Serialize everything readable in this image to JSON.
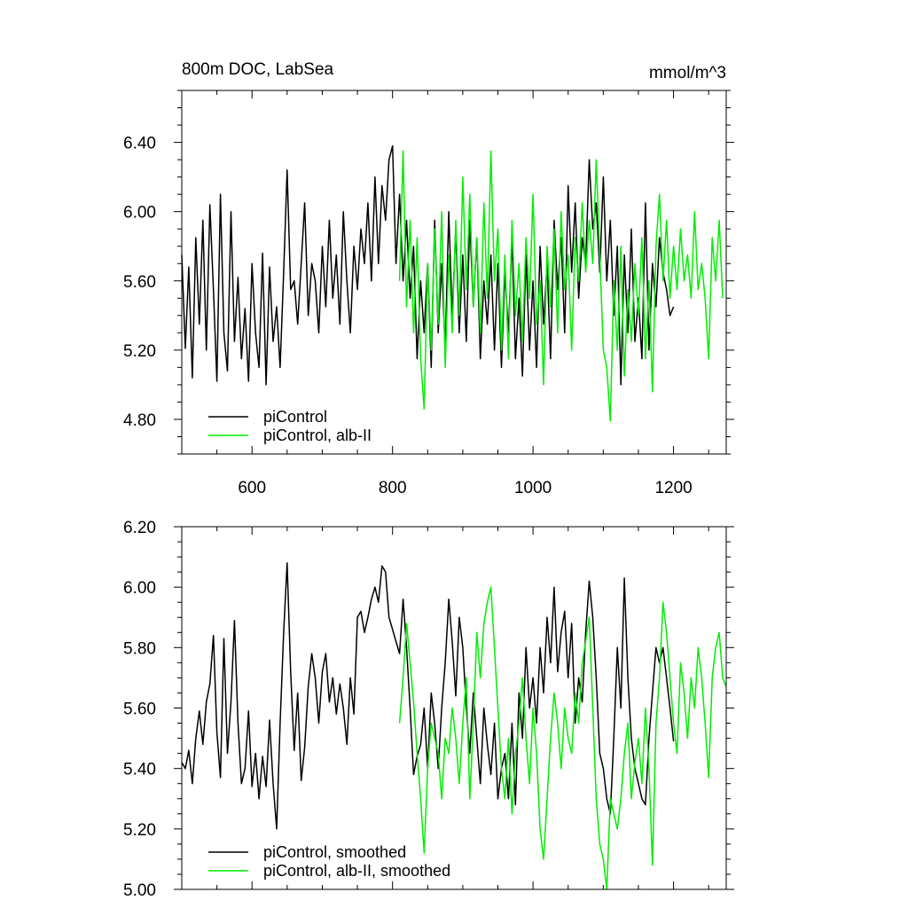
{
  "colors": {
    "black": "#000000",
    "green": "#00ee00",
    "background": "#ffffff"
  },
  "chart_data": [
    {
      "type": "line",
      "title": "800m DOC, LabSea",
      "units": "mmol/m^3",
      "xlabel": "",
      "ylabel": "",
      "xlim": [
        500,
        1275
      ],
      "ylim": [
        4.6,
        6.7
      ],
      "xticks": [
        600,
        800,
        1000,
        1200
      ],
      "xtick_labels": [
        "600",
        "800",
        "1000",
        "1200"
      ],
      "yticks": [
        4.8,
        5.2,
        5.6,
        6.0,
        6.4
      ],
      "ytick_labels": [
        "4.80",
        "5.20",
        "5.60",
        "6.00",
        "6.40"
      ],
      "grid": false,
      "legend_position": "bottom-left",
      "series": [
        {
          "name": "piControl",
          "color": "#000000",
          "x": [
            500,
            505,
            510,
            515,
            520,
            525,
            530,
            535,
            540,
            545,
            550,
            555,
            560,
            565,
            570,
            575,
            580,
            585,
            590,
            595,
            600,
            605,
            610,
            615,
            620,
            625,
            630,
            635,
            640,
            645,
            650,
            655,
            660,
            665,
            670,
            675,
            680,
            685,
            690,
            695,
            700,
            705,
            710,
            715,
            720,
            725,
            730,
            735,
            740,
            745,
            750,
            755,
            760,
            765,
            770,
            775,
            780,
            785,
            790,
            795,
            800,
            805,
            810,
            815,
            820,
            825,
            830,
            835,
            840,
            845,
            850,
            855,
            860,
            865,
            870,
            875,
            880,
            885,
            890,
            895,
            900,
            905,
            910,
            915,
            920,
            925,
            930,
            935,
            940,
            945,
            950,
            955,
            960,
            965,
            970,
            975,
            980,
            985,
            990,
            995,
            1000,
            1005,
            1010,
            1015,
            1020,
            1025,
            1030,
            1035,
            1040,
            1045,
            1050,
            1055,
            1060,
            1065,
            1070,
            1075,
            1080,
            1085,
            1090,
            1095,
            1100,
            1105,
            1110,
            1115,
            1120,
            1125,
            1130,
            1135,
            1140,
            1145,
            1150,
            1155,
            1160,
            1165,
            1170,
            1175,
            1180,
            1185,
            1190,
            1195,
            1200
          ],
          "values": [
            5.75,
            5.21,
            5.68,
            5.04,
            5.85,
            5.35,
            5.95,
            5.2,
            6.04,
            5.55,
            5.02,
            6.1,
            5.3,
            5.08,
            6.0,
            5.25,
            5.62,
            5.15,
            5.44,
            5.02,
            5.7,
            5.3,
            5.1,
            5.76,
            5.0,
            5.68,
            5.25,
            5.45,
            5.1,
            5.65,
            6.24,
            5.55,
            5.6,
            5.35,
            5.7,
            6.05,
            5.4,
            5.7,
            5.6,
            5.3,
            5.8,
            5.45,
            5.95,
            5.5,
            5.75,
            5.35,
            6.0,
            5.6,
            5.3,
            5.8,
            5.55,
            5.9,
            5.7,
            6.05,
            5.6,
            6.2,
            5.7,
            6.15,
            5.95,
            6.3,
            6.38,
            5.7,
            6.1,
            5.6,
            5.95,
            5.5,
            5.8,
            5.15,
            5.6,
            5.3,
            5.7,
            5.1,
            5.95,
            5.3,
            5.7,
            5.2,
            6.0,
            5.4,
            5.9,
            5.3,
            5.75,
            5.25,
            5.95,
            5.45,
            5.85,
            5.15,
            5.6,
            5.35,
            5.75,
            5.2,
            5.7,
            5.1,
            5.65,
            5.3,
            5.85,
            5.15,
            5.5,
            5.05,
            5.75,
            5.2,
            5.6,
            5.1,
            5.8,
            5.35,
            5.7,
            5.15,
            5.95,
            5.55,
            5.85,
            5.3,
            6.15,
            5.65,
            6.05,
            5.5,
            5.85,
            5.7,
            6.3,
            5.9,
            6.05,
            5.65,
            6.2,
            5.6,
            5.95,
            5.4,
            5.8,
            5.0,
            5.75,
            5.3,
            5.9,
            5.25,
            5.5,
            5.15,
            6.05,
            5.2,
            5.7,
            5.45,
            5.85,
            5.65,
            5.55,
            5.4,
            5.45
          ]
        },
        {
          "name": "piControl, alb-II",
          "color": "#00ee00",
          "x": [
            810,
            815,
            820,
            825,
            830,
            835,
            840,
            845,
            850,
            855,
            860,
            865,
            870,
            875,
            880,
            885,
            890,
            895,
            900,
            905,
            910,
            915,
            920,
            925,
            930,
            935,
            940,
            945,
            950,
            955,
            960,
            965,
            970,
            975,
            980,
            985,
            990,
            995,
            1000,
            1005,
            1010,
            1015,
            1020,
            1025,
            1030,
            1035,
            1040,
            1045,
            1050,
            1055,
            1060,
            1065,
            1070,
            1075,
            1080,
            1085,
            1090,
            1095,
            1100,
            1105,
            1110,
            1115,
            1120,
            1125,
            1130,
            1135,
            1140,
            1145,
            1150,
            1155,
            1160,
            1165,
            1170,
            1175,
            1180,
            1185,
            1190,
            1195,
            1200,
            1205,
            1210,
            1215,
            1220,
            1225,
            1230,
            1235,
            1240,
            1245,
            1250,
            1255,
            1260,
            1265,
            1270
          ],
          "values": [
            5.6,
            6.35,
            5.45,
            5.95,
            5.3,
            5.85,
            5.15,
            4.86,
            5.7,
            5.2,
            5.9,
            5.35,
            6.0,
            5.1,
            5.75,
            5.3,
            5.95,
            5.4,
            6.2,
            5.55,
            6.1,
            5.45,
            5.85,
            5.3,
            6.05,
            5.5,
            6.35,
            5.6,
            5.9,
            5.2,
            5.75,
            5.15,
            5.95,
            5.4,
            5.7,
            5.25,
            5.85,
            5.5,
            6.1,
            5.35,
            5.6,
            5.0,
            5.8,
            5.45,
            5.9,
            5.3,
            6.0,
            5.55,
            5.75,
            5.2,
            5.85,
            5.6,
            6.05,
            5.65,
            5.95,
            5.7,
            6.3,
            5.75,
            5.2,
            5.1,
            4.79,
            5.6,
            5.2,
            5.8,
            5.05,
            5.55,
            5.25,
            5.7,
            5.4,
            5.85,
            5.15,
            5.6,
            4.96,
            5.8,
            6.1,
            5.6,
            5.95,
            5.5,
            5.8,
            5.55,
            5.9,
            5.6,
            5.75,
            5.5,
            6.0,
            5.55,
            5.7,
            5.5,
            5.15,
            5.85,
            5.6,
            5.95,
            5.5
          ]
        }
      ]
    },
    {
      "type": "line",
      "title": "",
      "xlabel": "",
      "ylabel": "",
      "xlim": [
        500,
        1275
      ],
      "ylim": [
        5.0,
        6.2
      ],
      "xticks": [
        600,
        800,
        1000,
        1200
      ],
      "xtick_labels": [],
      "yticks": [
        5.0,
        5.2,
        5.4,
        5.6,
        5.8,
        6.0,
        6.2
      ],
      "ytick_labels": [
        "5.00",
        "5.20",
        "5.40",
        "5.60",
        "5.80",
        "6.00",
        "6.20"
      ],
      "grid": false,
      "legend_position": "bottom-left",
      "series": [
        {
          "name": "piControl, smoothed",
          "color": "#000000",
          "x": [
            500,
            505,
            510,
            515,
            520,
            525,
            530,
            535,
            540,
            545,
            550,
            555,
            560,
            565,
            570,
            575,
            580,
            585,
            590,
            595,
            600,
            605,
            610,
            615,
            620,
            625,
            630,
            635,
            640,
            645,
            650,
            655,
            660,
            665,
            670,
            675,
            680,
            685,
            690,
            695,
            700,
            705,
            710,
            715,
            720,
            725,
            730,
            735,
            740,
            745,
            750,
            755,
            760,
            765,
            770,
            775,
            780,
            785,
            790,
            795,
            800,
            805,
            810,
            815,
            820,
            825,
            830,
            835,
            840,
            845,
            850,
            855,
            860,
            865,
            870,
            875,
            880,
            885,
            890,
            895,
            900,
            905,
            910,
            915,
            920,
            925,
            930,
            935,
            940,
            945,
            950,
            955,
            960,
            965,
            970,
            975,
            980,
            985,
            990,
            995,
            1000,
            1005,
            1010,
            1015,
            1020,
            1025,
            1030,
            1035,
            1040,
            1045,
            1050,
            1055,
            1060,
            1065,
            1070,
            1075,
            1080,
            1085,
            1090,
            1095,
            1100,
            1105,
            1110,
            1115,
            1120,
            1125,
            1130,
            1135,
            1140,
            1145,
            1150,
            1155,
            1160,
            1165,
            1170,
            1175,
            1180,
            1185,
            1190,
            1195,
            1200
          ],
          "values": [
            5.42,
            5.4,
            5.46,
            5.35,
            5.5,
            5.59,
            5.48,
            5.62,
            5.68,
            5.84,
            5.52,
            5.37,
            5.83,
            5.45,
            5.62,
            5.89,
            5.55,
            5.35,
            5.4,
            5.59,
            5.34,
            5.45,
            5.3,
            5.44,
            5.34,
            5.56,
            5.35,
            5.2,
            5.55,
            5.85,
            6.08,
            5.72,
            5.46,
            5.65,
            5.36,
            5.47,
            5.67,
            5.78,
            5.7,
            5.55,
            5.72,
            5.78,
            5.62,
            5.7,
            5.58,
            5.68,
            5.6,
            5.48,
            5.7,
            5.58,
            5.9,
            5.92,
            5.85,
            5.9,
            5.96,
            6.0,
            5.95,
            6.07,
            6.05,
            5.9,
            5.86,
            5.82,
            5.78,
            5.96,
            5.8,
            5.6,
            5.38,
            5.44,
            5.48,
            5.6,
            5.4,
            5.65,
            5.55,
            5.4,
            5.6,
            5.75,
            5.96,
            5.82,
            5.64,
            5.9,
            5.8,
            5.6,
            5.45,
            5.65,
            5.5,
            5.35,
            5.6,
            5.48,
            5.38,
            5.55,
            5.3,
            5.4,
            5.45,
            5.3,
            5.55,
            5.28,
            5.65,
            5.5,
            5.8,
            5.6,
            5.7,
            5.55,
            5.8,
            5.65,
            5.9,
            5.75,
            6.0,
            5.72,
            5.85,
            5.92,
            5.7,
            5.88,
            5.55,
            5.7,
            5.62,
            5.85,
            6.02,
            5.9,
            5.7,
            5.45,
            5.4,
            5.3,
            5.25,
            5.5,
            5.8,
            5.6,
            6.03,
            5.7,
            5.5,
            5.4,
            5.35,
            5.3,
            5.28,
            5.5,
            5.65,
            5.8,
            5.75,
            5.8,
            5.7,
            5.6,
            5.49
          ]
        },
        {
          "name": "piControl, alb-II, smoothed",
          "color": "#00ee00",
          "x": [
            810,
            815,
            820,
            825,
            830,
            835,
            840,
            845,
            850,
            855,
            860,
            865,
            870,
            875,
            880,
            885,
            890,
            895,
            900,
            905,
            910,
            915,
            920,
            925,
            930,
            935,
            940,
            945,
            950,
            955,
            960,
            965,
            970,
            975,
            980,
            985,
            990,
            995,
            1000,
            1005,
            1010,
            1015,
            1020,
            1025,
            1030,
            1035,
            1040,
            1045,
            1050,
            1055,
            1060,
            1065,
            1070,
            1075,
            1080,
            1085,
            1090,
            1095,
            1100,
            1105,
            1110,
            1115,
            1120,
            1125,
            1130,
            1135,
            1140,
            1145,
            1150,
            1155,
            1160,
            1165,
            1170,
            1175,
            1180,
            1185,
            1190,
            1195,
            1200,
            1205,
            1210,
            1215,
            1220,
            1225,
            1230,
            1235,
            1240,
            1245,
            1250,
            1255,
            1260,
            1265,
            1270,
            1275
          ],
          "values": [
            5.55,
            5.7,
            5.88,
            5.75,
            5.62,
            5.45,
            5.3,
            5.12,
            5.4,
            5.55,
            5.5,
            5.45,
            5.3,
            5.5,
            5.45,
            5.6,
            5.5,
            5.35,
            5.55,
            5.7,
            5.3,
            5.55,
            5.85,
            5.7,
            5.88,
            5.95,
            6.0,
            5.8,
            5.6,
            5.4,
            5.3,
            5.5,
            5.25,
            5.45,
            5.55,
            5.7,
            5.5,
            5.35,
            5.6,
            5.45,
            5.2,
            5.1,
            5.3,
            5.5,
            5.65,
            5.55,
            5.4,
            5.6,
            5.5,
            5.45,
            5.65,
            5.55,
            5.75,
            5.82,
            5.9,
            5.6,
            5.3,
            5.15,
            5.1,
            5.0,
            5.3,
            5.25,
            5.2,
            5.3,
            5.45,
            5.55,
            5.3,
            5.42,
            5.5,
            5.35,
            5.6,
            5.4,
            5.08,
            5.55,
            5.7,
            5.95,
            5.85,
            5.7,
            5.55,
            5.45,
            5.75,
            5.65,
            5.5,
            5.7,
            5.6,
            5.8,
            5.7,
            5.55,
            5.37,
            5.7,
            5.8,
            5.85,
            5.7,
            5.67
          ]
        }
      ]
    }
  ]
}
